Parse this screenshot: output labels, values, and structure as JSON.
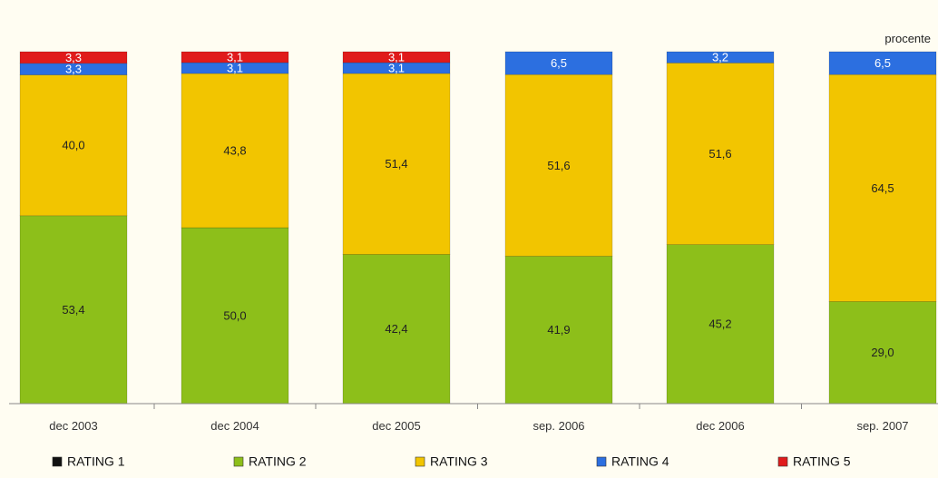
{
  "chart_data": {
    "type": "bar",
    "stacked": true,
    "unit_label": "procente",
    "categories": [
      "dec 2003",
      "dec 2004",
      "dec 2005",
      "sep. 2006",
      "dec 2006",
      "sep. 2007"
    ],
    "series": [
      {
        "name": "RATING 1",
        "color": "#111111",
        "values": [
          0,
          0,
          0,
          0,
          0,
          0
        ]
      },
      {
        "name": "RATING 2",
        "color": "#8dbf1a",
        "values": [
          53.4,
          50.0,
          42.4,
          41.9,
          45.2,
          29.0
        ]
      },
      {
        "name": "RATING 3",
        "color": "#f2c500",
        "values": [
          40.0,
          43.8,
          51.4,
          51.6,
          51.6,
          64.5
        ]
      },
      {
        "name": "RATING 4",
        "color": "#2c6fe0",
        "values": [
          3.3,
          3.1,
          3.1,
          6.5,
          3.2,
          6.5
        ]
      },
      {
        "name": "RATING 5",
        "color": "#e01b1b",
        "values": [
          3.3,
          3.1,
          3.1,
          0,
          0,
          0
        ]
      }
    ],
    "data_labels": [
      [
        "",
        "53,4",
        "40,0",
        "3,3",
        "3,3"
      ],
      [
        "",
        "50,0",
        "43,8",
        "3,1",
        "3,1"
      ],
      [
        "",
        "42,4",
        "51,4",
        "3,1",
        "3,1"
      ],
      [
        "",
        "41,9",
        "51,6",
        "6,5",
        ""
      ],
      [
        "",
        "45,2",
        "51,6",
        "3,2",
        ""
      ],
      [
        "",
        "29,0",
        "64,5",
        "6,5",
        ""
      ]
    ],
    "ylim": [
      0,
      100
    ],
    "grid": false,
    "legend_position": "bottom"
  }
}
